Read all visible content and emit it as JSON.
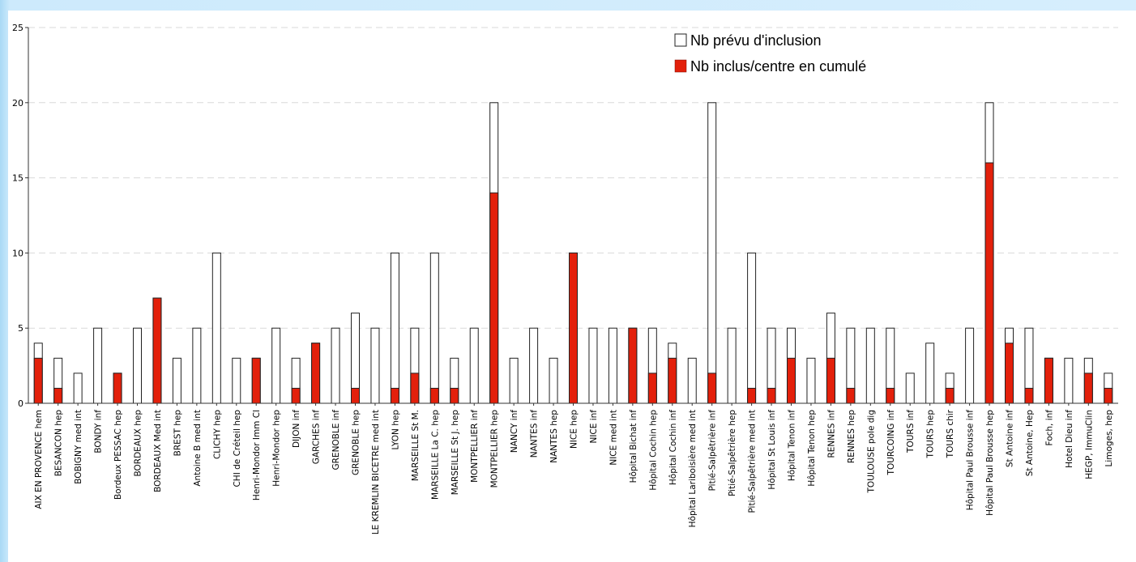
{
  "chart_data": {
    "type": "bar",
    "title": "",
    "xlabel": "",
    "ylabel": "",
    "ylim": [
      0,
      25
    ],
    "yticks": [
      0,
      5,
      10,
      15,
      20,
      25
    ],
    "grid": true,
    "legend_position": "top-right",
    "categories": [
      "AIX EN PROVENCE hem",
      "BESANCON hep",
      "BOBIGNY med int",
      "BONDY inf",
      "Bordeux PESSAC hep",
      "BORDEAUX hep",
      "BORDEAUX Med int",
      "BREST hep",
      "Antoine B med int",
      "CLICHY hep",
      "CHI de Créteil hep",
      "Henri-Mondor Imm Cl",
      "Henri-Mondor hep",
      "DIJON inf",
      "GARCHES inf",
      "GRENOBLE inf",
      "GRENOBLE hep",
      "LE KREMLIN BICETRE med int",
      "LYON hep",
      "MARSEILLE St M.",
      "MARSEILLE La C. hep",
      "MARSEILLE St J. hep",
      "MONTPELLIER inf",
      "MONTPELLIER hep",
      "NANCY inf",
      "NANTES inf",
      "NANTES hep",
      "NICE hep",
      "NICE inf",
      "NICE med int",
      "Hôpital Bichat inf",
      "Hôpital Cochin hep",
      "Hôpital Cochin inf",
      "Hôpital Lariboisière med int",
      "Pitié-Salpêtrière inf",
      "Pitié-Salpêtrière hep",
      "Pitié-Salpêtrière med int",
      "Hôpital St Louis inf",
      "Hôpital Tenon inf",
      "Hôpital Tenon hep",
      "RENNES inf",
      "RENNES hep",
      "TOULOUSE pole dig",
      "TOURCOING inf",
      "TOURS inf",
      "TOURS hep",
      "TOURS chir",
      "Hôpital Paul Brousse inf",
      "Hôpital Paul Brousse hep",
      "St Antoine inf",
      "St Antoine, Hep",
      "Foch, inf",
      "Hotel Dieu inf",
      "HEGP, ImmuClin",
      "Limoges, hep"
    ],
    "series": [
      {
        "name": "Nb prévu d'inclusion",
        "color": "#ffffff",
        "values": [
          4,
          3,
          2,
          5,
          2,
          5,
          7,
          3,
          5,
          10,
          3,
          3,
          5,
          3,
          4,
          5,
          6,
          5,
          10,
          5,
          10,
          3,
          5,
          20,
          3,
          5,
          3,
          10,
          5,
          5,
          5,
          5,
          4,
          3,
          20,
          5,
          10,
          5,
          5,
          3,
          6,
          5,
          5,
          5,
          2,
          4,
          2,
          5,
          20,
          5,
          5,
          3,
          3,
          3,
          2
        ]
      },
      {
        "name": "Nb inclus/centre en cumulé",
        "color": "#e3200b",
        "values": [
          3,
          1,
          0,
          0,
          2,
          0,
          7,
          0,
          0,
          0,
          0,
          3,
          0,
          1,
          4,
          0,
          1,
          0,
          1,
          2,
          1,
          1,
          0,
          14,
          0,
          0,
          0,
          10,
          0,
          0,
          5,
          2,
          3,
          0,
          2,
          0,
          1,
          1,
          3,
          0,
          3,
          1,
          0,
          1,
          0,
          0,
          1,
          0,
          16,
          4,
          1,
          3,
          0,
          2,
          1
        ]
      }
    ]
  }
}
